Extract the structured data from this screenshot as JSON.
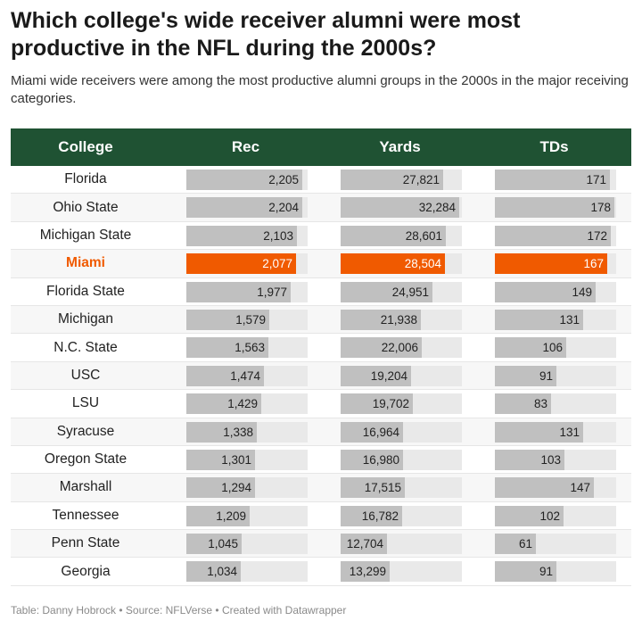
{
  "title": "Which college's wide receiver alumni were most productive in the NFL during the 2000s?",
  "subtitle": "Miami wide receivers were among the most productive alumni groups in the 2000s in the major receiving categories.",
  "footer": "Table: Danny Hobrock • Source: NFLVerse • Created with Datawrapper",
  "colors": {
    "header": "#1f5233",
    "highlight": "#f05a00",
    "bar": "#c0c0c0",
    "track": "#e9e9e9"
  },
  "chart_data": {
    "type": "table",
    "columns": [
      "College",
      "Rec",
      "Yards",
      "TDs"
    ],
    "highlight": "Miami",
    "column_max": {
      "Rec": 2300,
      "Yards": 33000,
      "TDs": 180
    },
    "rows": [
      {
        "college": "Florida",
        "rec": "2,205",
        "yards": "27,821",
        "tds": "171",
        "rec_v": 2205,
        "yards_v": 27821,
        "tds_v": 171
      },
      {
        "college": "Ohio State",
        "rec": "2,204",
        "yards": "32,284",
        "tds": "178",
        "rec_v": 2204,
        "yards_v": 32284,
        "tds_v": 178
      },
      {
        "college": "Michigan State",
        "rec": "2,103",
        "yards": "28,601",
        "tds": "172",
        "rec_v": 2103,
        "yards_v": 28601,
        "tds_v": 172
      },
      {
        "college": "Miami",
        "rec": "2,077",
        "yards": "28,504",
        "tds": "167",
        "rec_v": 2077,
        "yards_v": 28504,
        "tds_v": 167
      },
      {
        "college": "Florida State",
        "rec": "1,977",
        "yards": "24,951",
        "tds": "149",
        "rec_v": 1977,
        "yards_v": 24951,
        "tds_v": 149
      },
      {
        "college": "Michigan",
        "rec": "1,579",
        "yards": "21,938",
        "tds": "131",
        "rec_v": 1579,
        "yards_v": 21938,
        "tds_v": 131
      },
      {
        "college": "N.C. State",
        "rec": "1,563",
        "yards": "22,006",
        "tds": "106",
        "rec_v": 1563,
        "yards_v": 22006,
        "tds_v": 106
      },
      {
        "college": "USC",
        "rec": "1,474",
        "yards": "19,204",
        "tds": "91",
        "rec_v": 1474,
        "yards_v": 19204,
        "tds_v": 91
      },
      {
        "college": "LSU",
        "rec": "1,429",
        "yards": "19,702",
        "tds": "83",
        "rec_v": 1429,
        "yards_v": 19702,
        "tds_v": 83
      },
      {
        "college": "Syracuse",
        "rec": "1,338",
        "yards": "16,964",
        "tds": "131",
        "rec_v": 1338,
        "yards_v": 16964,
        "tds_v": 131
      },
      {
        "college": "Oregon State",
        "rec": "1,301",
        "yards": "16,980",
        "tds": "103",
        "rec_v": 1301,
        "yards_v": 16980,
        "tds_v": 103
      },
      {
        "college": "Marshall",
        "rec": "1,294",
        "yards": "17,515",
        "tds": "147",
        "rec_v": 1294,
        "yards_v": 17515,
        "tds_v": 147
      },
      {
        "college": "Tennessee",
        "rec": "1,209",
        "yards": "16,782",
        "tds": "102",
        "rec_v": 1209,
        "yards_v": 16782,
        "tds_v": 102
      },
      {
        "college": "Penn State",
        "rec": "1,045",
        "yards": "12,704",
        "tds": "61",
        "rec_v": 1045,
        "yards_v": 12704,
        "tds_v": 61
      },
      {
        "college": "Georgia",
        "rec": "1,034",
        "yards": "13,299",
        "tds": "91",
        "rec_v": 1034,
        "yards_v": 13299,
        "tds_v": 91
      }
    ]
  }
}
